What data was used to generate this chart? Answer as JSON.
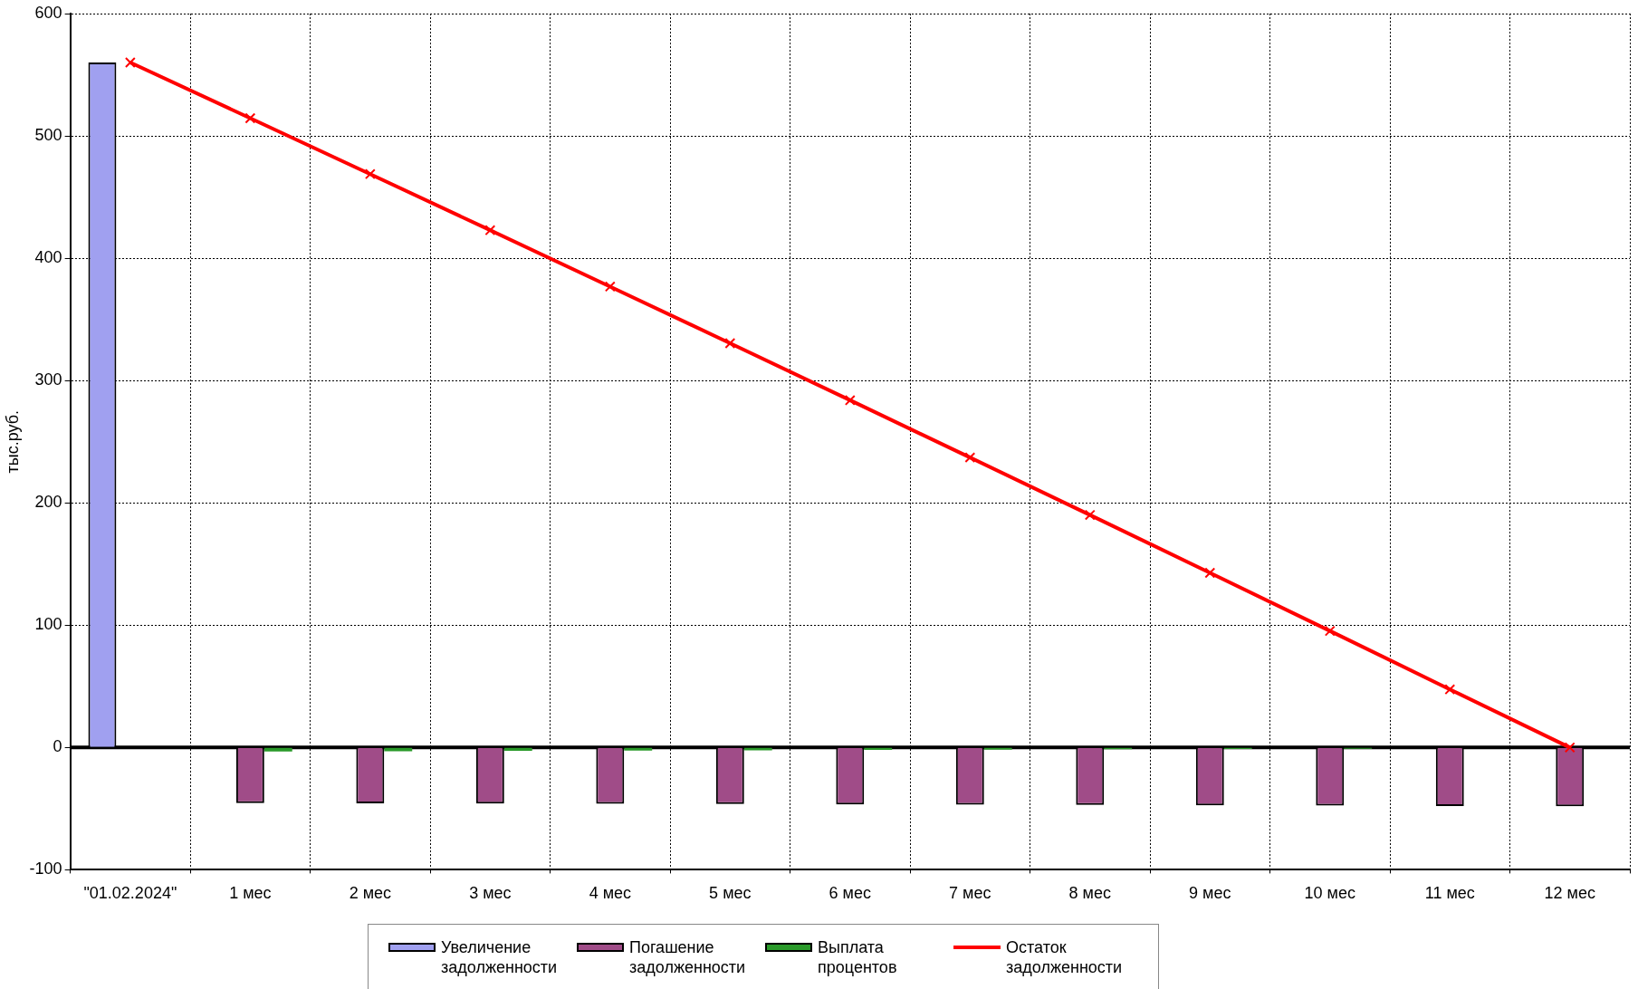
{
  "chart_data": {
    "type": "bar",
    "ylabel": "тыс.руб.",
    "categories": [
      "\"01.02.2024\"",
      "1 мес",
      "2 мес",
      "3 мес",
      "4 мес",
      "5 мес",
      "6 мес",
      "7 мес",
      "8 мес",
      "9 мес",
      "10 мес",
      "11 мес",
      "12 мес"
    ],
    "series": [
      {
        "name": "Увеличение задолженности",
        "color": "#a0a0f0",
        "values": [
          560,
          null,
          null,
          null,
          null,
          null,
          null,
          null,
          null,
          null,
          null,
          null,
          null
        ]
      },
      {
        "name": "Погашение задолженности",
        "color": "#a04c88",
        "values": [
          null,
          -45.5,
          -45.7,
          -45.9,
          -46.1,
          -46.3,
          -46.6,
          -46.8,
          -47.0,
          -47.3,
          -47.5,
          -47.8,
          -48.0
        ]
      },
      {
        "name": "Выплата процентов",
        "color": "#2a9a2a",
        "values": [
          null,
          -3.3,
          -3.0,
          -2.8,
          -2.5,
          -2.3,
          -2.0,
          -1.8,
          -1.5,
          -1.3,
          -1.0,
          null,
          null
        ]
      },
      {
        "name": "Остаток задолженности",
        "type": "line",
        "color": "#ff0000",
        "marker": "cross",
        "values": [
          560,
          514.5,
          468.8,
          422.9,
          376.8,
          330.5,
          283.9,
          237.1,
          190.1,
          142.8,
          95.3,
          47.5,
          0
        ]
      }
    ],
    "ylim": [
      -100,
      600
    ],
    "yticks": [
      -100,
      0,
      100,
      200,
      300,
      400,
      500,
      600
    ],
    "ref_lines": [
      {
        "axis": "y",
        "value": 0,
        "color": "#000000"
      }
    ],
    "grid": true,
    "legend": "bottom"
  }
}
